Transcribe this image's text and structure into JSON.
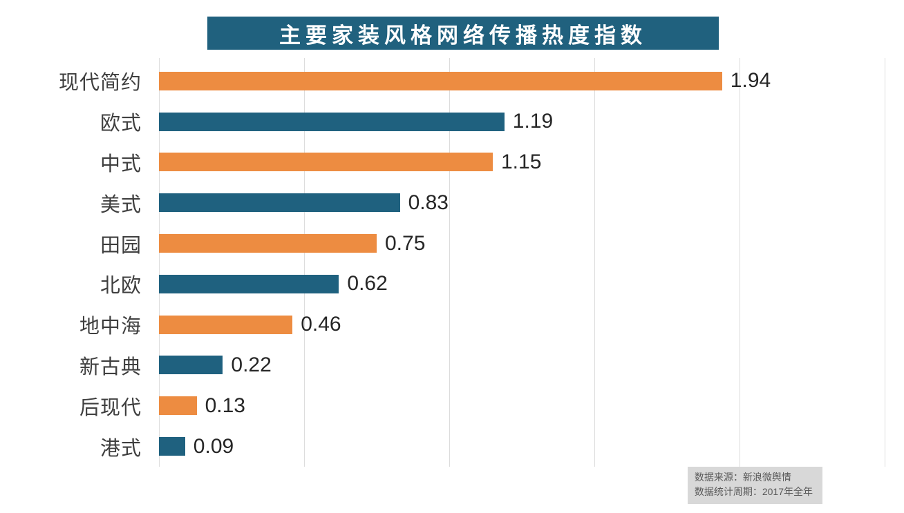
{
  "chart_data": {
    "type": "bar",
    "orientation": "horizontal",
    "title": "主要家装风格网络传播热度指数",
    "categories": [
      "现代简约",
      "欧式",
      "中式",
      "美式",
      "田园",
      "北欧",
      "地中海",
      "新古典",
      "后现代",
      "港式"
    ],
    "values": [
      1.94,
      1.19,
      1.15,
      0.83,
      0.75,
      0.62,
      0.46,
      0.22,
      0.13,
      0.09
    ],
    "value_labels": [
      "1.94",
      "1.19",
      "1.15",
      "0.83",
      "0.75",
      "0.62",
      "0.46",
      "0.22",
      "0.13",
      "0.09"
    ],
    "xlabel": "",
    "ylabel": "",
    "xlim": [
      0,
      2.5
    ],
    "gridlines": [
      0,
      0.5,
      1.0,
      1.5,
      2.0,
      2.5
    ],
    "grid": true,
    "legend": false,
    "data_labels": true
  },
  "footer": {
    "source_line1": "数据来源：新浪微舆情",
    "source_line2": "数据统计周期：2017年全年"
  },
  "colors": {
    "title_bg": "#20617E",
    "title_text": "#FFFFFF",
    "bar_orange": "#ED8C41",
    "bar_teal": "#1F617F",
    "category_text": "#3F3F3F",
    "value_text": "#262626",
    "grid_line": "#DCDCDC",
    "source_bg": "#D8D8D8",
    "source_text": "#595959"
  }
}
